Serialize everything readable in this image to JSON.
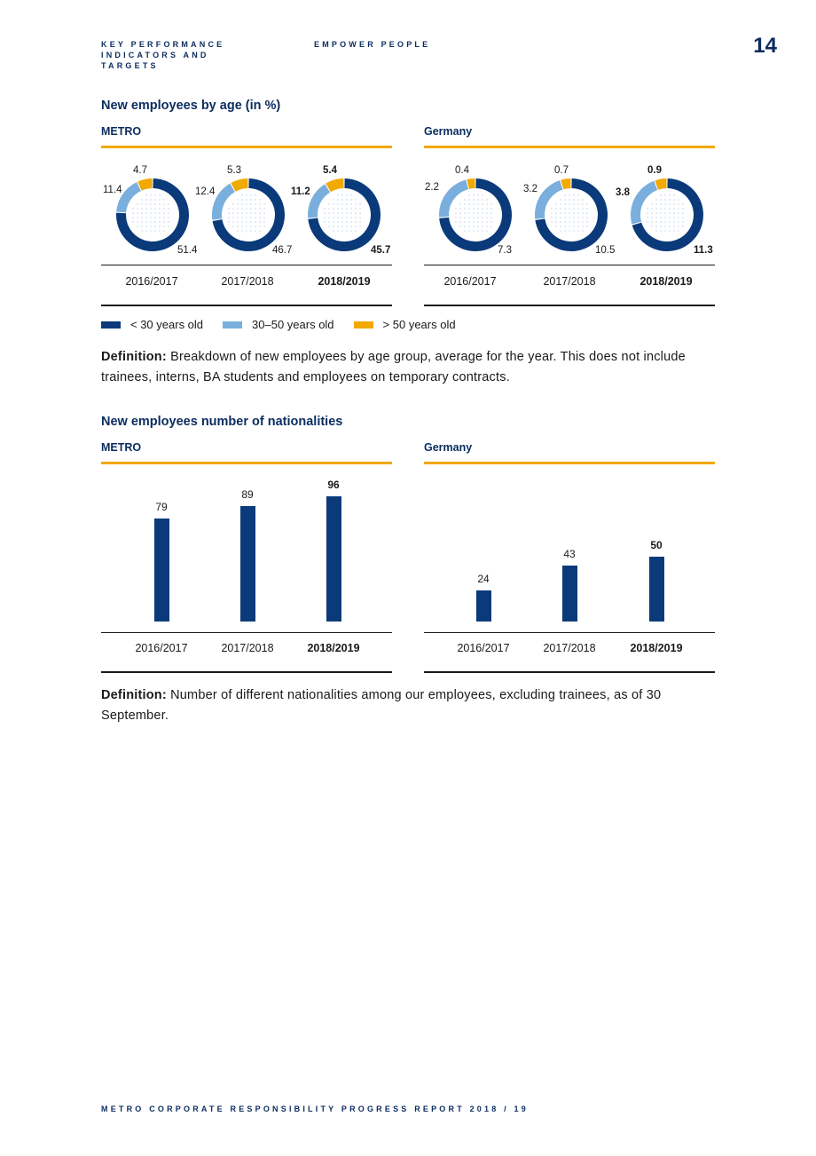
{
  "header": {
    "section_left": "KEY PERFORMANCE INDICATORS AND TARGETS",
    "section_mid": "EMPOWER PEOPLE",
    "page_number": "14"
  },
  "age_section": {
    "title": "New employees by age (in %)",
    "legend": [
      "< 30 years old",
      "30–50 years old",
      "> 50 years old"
    ],
    "definition_label": "Definition:",
    "definition_text": " Breakdown of new employees by age group, average for the year. This does not include trainees, interns, BA students and employees on temporary contracts."
  },
  "nationalities_section": {
    "title": "New employees number of nationalities",
    "definition_label": "Definition:",
    "definition_text": " Number of different nationalities among our employees, excluding trainees, as of 30 September."
  },
  "colors": {
    "dark_blue": "#0b3a7a",
    "light_blue": "#7aafdd",
    "gold": "#f2a900",
    "title_blue": "#0b2c5f"
  },
  "chart_data": [
    {
      "type": "pie",
      "variant": "donut",
      "panel": "METRO",
      "title": "New employees by age (in %)",
      "categories": [
        "2016/2017",
        "2017/2018",
        "2018/2019"
      ],
      "series": [
        {
          "name": "< 30 years old",
          "values": [
            51.4,
            46.7,
            45.7
          ]
        },
        {
          "name": "30–50 years old",
          "values": [
            11.4,
            12.4,
            11.2
          ]
        },
        {
          "name": "> 50 years old",
          "values": [
            4.7,
            5.3,
            5.4
          ]
        }
      ],
      "highlight_category": "2018/2019"
    },
    {
      "type": "pie",
      "variant": "donut",
      "panel": "Germany",
      "title": "New employees by age (in %)",
      "categories": [
        "2016/2017",
        "2017/2018",
        "2018/2019"
      ],
      "series": [
        {
          "name": "< 30 years old",
          "values": [
            7.3,
            10.5,
            11.3
          ]
        },
        {
          "name": "30–50 years old",
          "values": [
            2.2,
            3.2,
            3.8
          ]
        },
        {
          "name": "> 50 years old",
          "values": [
            0.4,
            0.7,
            0.9
          ]
        }
      ],
      "highlight_category": "2018/2019"
    },
    {
      "type": "bar",
      "panel": "METRO",
      "title": "New employees number of nationalities",
      "categories": [
        "2016/2017",
        "2017/2018",
        "2018/2019"
      ],
      "values": [
        79,
        89,
        96
      ],
      "ylim": [
        0,
        100
      ],
      "highlight_category": "2018/2019"
    },
    {
      "type": "bar",
      "panel": "Germany",
      "title": "New employees number of nationalities",
      "categories": [
        "2016/2017",
        "2017/2018",
        "2018/2019"
      ],
      "values": [
        24,
        43,
        50
      ],
      "ylim": [
        0,
        100
      ],
      "highlight_category": "2018/2019"
    }
  ],
  "footer": "METRO CORPORATE RESPONSIBILITY PROGRESS REPORT 2018 / 19"
}
